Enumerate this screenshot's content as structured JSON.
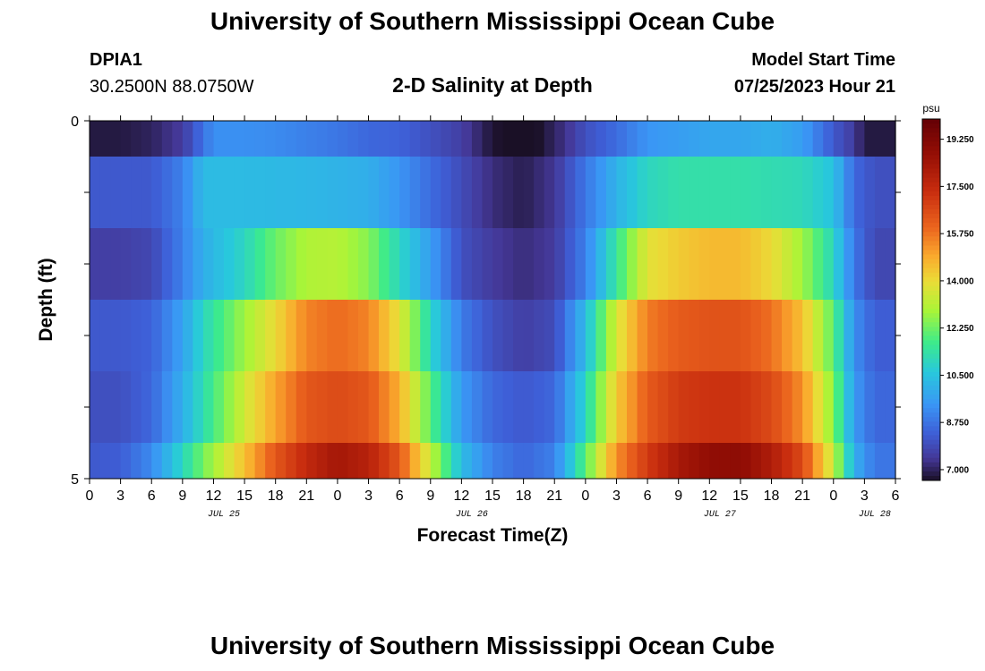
{
  "header": {
    "title": "University of Southern Mississippi Ocean Cube",
    "station": "DPIA1",
    "coords": "30.2500N  88.0750W",
    "chart_title": "2-D Salinity at Depth",
    "model_start_label": "Model Start Time",
    "model_start_value": "07/25/2023 Hour 21"
  },
  "footer": {
    "title": "University of Southern Mississippi Ocean Cube"
  },
  "chart_data": {
    "type": "heatmap",
    "title": "2-D Salinity at Depth",
    "xlabel": "Forecast Time(Z)",
    "ylabel": "Depth (ft)",
    "unit": "psu",
    "x_tick_labels": [
      "0",
      "3",
      "6",
      "9",
      "12",
      "15",
      "18",
      "21",
      "0",
      "3",
      "6",
      "9",
      "12",
      "15",
      "18",
      "21",
      "0",
      "3",
      "6",
      "9",
      "12",
      "15",
      "18",
      "21",
      "0",
      "3",
      "6"
    ],
    "date_labels": [
      {
        "label": "JUL 25",
        "hour_index": 13
      },
      {
        "label": "JUL 26",
        "hour_index": 37
      },
      {
        "label": "JUL 27",
        "hour_index": 61
      },
      {
        "label": "JUL 28",
        "hour_index": 76
      }
    ],
    "x_hours": 78,
    "y_tick_labels": [
      "0",
      "5"
    ],
    "ylim": [
      0,
      5
    ],
    "depth_bands": [
      0,
      0.5,
      1.5,
      2.5,
      3.5,
      4.5,
      5
    ],
    "colorbar": {
      "tick_labels": [
        "7.000",
        "8.750",
        "10.500",
        "12.250",
        "14.000",
        "15.750",
        "17.500",
        "19.250"
      ],
      "min": 6.6,
      "max": 20.0
    },
    "keypoints": [
      [
        [
          0,
          6.8
        ],
        [
          3,
          6.8
        ],
        [
          6,
          7.0
        ],
        [
          9,
          7.5
        ],
        [
          12,
          9.3
        ],
        [
          15,
          9.3
        ],
        [
          18,
          9.2
        ],
        [
          21,
          9.0
        ],
        [
          24,
          8.8
        ],
        [
          27,
          8.5
        ],
        [
          30,
          8.4
        ],
        [
          33,
          8.0
        ],
        [
          36,
          7.6
        ],
        [
          39,
          6.7
        ],
        [
          41,
          6.5
        ],
        [
          43,
          6.5
        ],
        [
          46,
          7.3
        ],
        [
          48,
          8.0
        ],
        [
          51,
          8.6
        ],
        [
          54,
          9.4
        ],
        [
          57,
          9.6
        ],
        [
          60,
          9.8
        ],
        [
          63,
          9.8
        ],
        [
          66,
          10.0
        ],
        [
          69,
          9.6
        ],
        [
          72,
          8.2
        ],
        [
          74,
          7.5
        ],
        [
          75,
          6.8
        ],
        [
          78,
          6.8
        ]
      ],
      [
        [
          0,
          8.2
        ],
        [
          3,
          8.2
        ],
        [
          6,
          8.2
        ],
        [
          9,
          9.0
        ],
        [
          11,
          10.3
        ],
        [
          15,
          10.3
        ],
        [
          21,
          10.2
        ],
        [
          24,
          10.1
        ],
        [
          27,
          10.0
        ],
        [
          30,
          9.4
        ],
        [
          33,
          8.6
        ],
        [
          36,
          7.9
        ],
        [
          39,
          7.2
        ],
        [
          42,
          6.9
        ],
        [
          45,
          7.4
        ],
        [
          48,
          8.8
        ],
        [
          51,
          10.1
        ],
        [
          54,
          11.0
        ],
        [
          57,
          11.3
        ],
        [
          63,
          11.3
        ],
        [
          69,
          11.1
        ],
        [
          72,
          10.5
        ],
        [
          74,
          8.5
        ],
        [
          76,
          8.0
        ],
        [
          78,
          8.0
        ]
      ],
      [
        [
          0,
          7.6
        ],
        [
          3,
          7.6
        ],
        [
          6,
          7.8
        ],
        [
          9,
          9.0
        ],
        [
          11,
          10.0
        ],
        [
          15,
          11.0
        ],
        [
          18,
          12.2
        ],
        [
          21,
          13.0
        ],
        [
          24,
          13.1
        ],
        [
          27,
          12.5
        ],
        [
          30,
          11.0
        ],
        [
          33,
          9.6
        ],
        [
          36,
          8.0
        ],
        [
          39,
          7.5
        ],
        [
          42,
          7.2
        ],
        [
          45,
          7.5
        ],
        [
          48,
          9.0
        ],
        [
          51,
          11.5
        ],
        [
          54,
          13.8
        ],
        [
          57,
          14.3
        ],
        [
          60,
          14.6
        ],
        [
          63,
          14.6
        ],
        [
          66,
          14.0
        ],
        [
          69,
          12.8
        ],
        [
          72,
          11.0
        ],
        [
          74,
          8.8
        ],
        [
          76,
          7.8
        ],
        [
          78,
          7.8
        ]
      ],
      [
        [
          0,
          8.2
        ],
        [
          3,
          8.2
        ],
        [
          6,
          8.4
        ],
        [
          9,
          9.7
        ],
        [
          11,
          11.0
        ],
        [
          15,
          12.8
        ],
        [
          18,
          14.0
        ],
        [
          21,
          15.5
        ],
        [
          24,
          15.9
        ],
        [
          27,
          15.5
        ],
        [
          30,
          13.8
        ],
        [
          33,
          11.0
        ],
        [
          36,
          8.9
        ],
        [
          39,
          8.0
        ],
        [
          42,
          7.6
        ],
        [
          45,
          7.9
        ],
        [
          48,
          10.3
        ],
        [
          51,
          13.6
        ],
        [
          54,
          15.6
        ],
        [
          57,
          16.2
        ],
        [
          60,
          16.4
        ],
        [
          63,
          16.4
        ],
        [
          66,
          15.8
        ],
        [
          69,
          14.5
        ],
        [
          72,
          12.0
        ],
        [
          74,
          9.3
        ],
        [
          76,
          8.3
        ],
        [
          78,
          8.3
        ]
      ],
      [
        [
          0,
          8.0
        ],
        [
          3,
          8.0
        ],
        [
          6,
          8.5
        ],
        [
          9,
          10.0
        ],
        [
          11,
          11.2
        ],
        [
          15,
          13.5
        ],
        [
          18,
          15.0
        ],
        [
          21,
          16.3
        ],
        [
          24,
          16.6
        ],
        [
          27,
          16.3
        ],
        [
          30,
          14.8
        ],
        [
          33,
          12.0
        ],
        [
          36,
          9.5
        ],
        [
          39,
          8.5
        ],
        [
          42,
          8.2
        ],
        [
          45,
          8.5
        ],
        [
          48,
          11.0
        ],
        [
          51,
          14.3
        ],
        [
          54,
          16.2
        ],
        [
          57,
          17.0
        ],
        [
          60,
          17.2
        ],
        [
          63,
          17.2
        ],
        [
          66,
          16.6
        ],
        [
          69,
          15.3
        ],
        [
          72,
          12.5
        ],
        [
          74,
          9.5
        ],
        [
          76,
          8.5
        ],
        [
          78,
          8.5
        ]
      ],
      [
        [
          0,
          8.2
        ],
        [
          3,
          8.3
        ],
        [
          6,
          9.2
        ],
        [
          9,
          11.0
        ],
        [
          11,
          12.3
        ],
        [
          15,
          14.5
        ],
        [
          18,
          16.3
        ],
        [
          21,
          17.5
        ],
        [
          24,
          18.3
        ],
        [
          27,
          17.8
        ],
        [
          30,
          16.3
        ],
        [
          33,
          13.3
        ],
        [
          36,
          10.3
        ],
        [
          39,
          9.0
        ],
        [
          42,
          8.5
        ],
        [
          45,
          9.0
        ],
        [
          48,
          12.0
        ],
        [
          51,
          15.3
        ],
        [
          54,
          17.0
        ],
        [
          57,
          18.2
        ],
        [
          60,
          18.8
        ],
        [
          63,
          18.9
        ],
        [
          66,
          18.0
        ],
        [
          69,
          16.6
        ],
        [
          72,
          13.3
        ],
        [
          74,
          10.0
        ],
        [
          76,
          8.8
        ],
        [
          78,
          8.8
        ]
      ]
    ]
  }
}
